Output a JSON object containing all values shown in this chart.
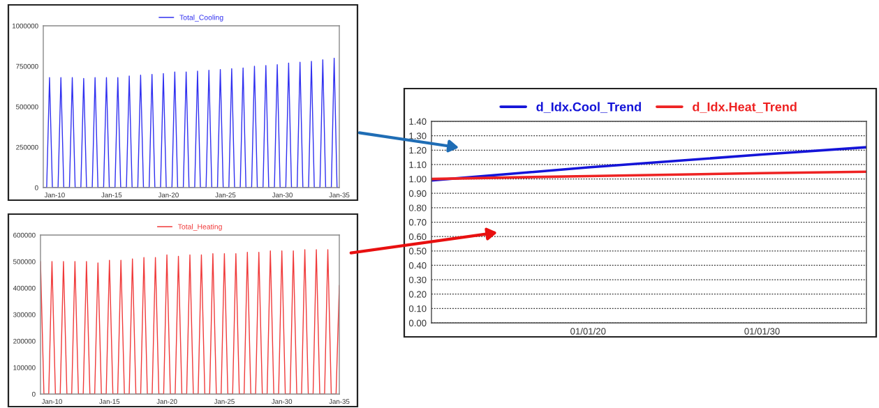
{
  "chart_data": [
    {
      "type": "line",
      "legend": "top",
      "xlim": [
        "2009-01-01",
        "2035-01-01"
      ],
      "ylim": [
        0,
        1000000
      ],
      "xticks": [
        {
          "value": "2010-01-01",
          "label": "Jan-10"
        },
        {
          "value": "2015-01-01",
          "label": "Jan-15"
        },
        {
          "value": "2020-01-01",
          "label": "Jan-20"
        },
        {
          "value": "2025-01-01",
          "label": "Jan-25"
        },
        {
          "value": "2030-01-01",
          "label": "Jan-30"
        },
        {
          "value": "2035-01-01",
          "label": "Jan-35"
        }
      ],
      "yticks": [
        0,
        250000,
        500000,
        750000,
        1000000
      ],
      "series": [
        {
          "name": "Total_Cooling",
          "color": "#3030f0",
          "x": [
            "2009-01-01",
            "2009-04-20",
            "2009-07-20",
            "2009-10-20",
            "2010-04-20",
            "2010-07-20",
            "2010-10-20",
            "2011-04-20",
            "2011-07-20",
            "2011-10-20",
            "2012-04-20",
            "2012-07-20",
            "2012-10-20",
            "2013-04-20",
            "2013-07-20",
            "2013-10-20",
            "2014-04-20",
            "2014-07-20",
            "2014-10-20",
            "2015-04-20",
            "2015-07-20",
            "2015-10-20",
            "2016-04-20",
            "2016-07-20",
            "2016-10-20",
            "2017-04-20",
            "2017-07-20",
            "2017-10-20",
            "2018-04-20",
            "2018-07-20",
            "2018-10-20",
            "2019-04-20",
            "2019-07-20",
            "2019-10-20",
            "2020-04-20",
            "2020-07-20",
            "2020-10-20",
            "2021-04-20",
            "2021-07-20",
            "2021-10-20",
            "2022-04-20",
            "2022-07-20",
            "2022-10-20",
            "2023-04-20",
            "2023-07-20",
            "2023-10-20",
            "2024-04-20",
            "2024-07-20",
            "2024-10-20",
            "2025-04-20",
            "2025-07-20",
            "2025-10-20",
            "2026-04-20",
            "2026-07-20",
            "2026-10-20",
            "2027-04-20",
            "2027-07-20",
            "2027-10-20",
            "2028-04-20",
            "2028-07-20",
            "2028-10-20",
            "2029-04-20",
            "2029-07-20",
            "2029-10-20",
            "2030-04-20",
            "2030-07-20",
            "2030-10-20",
            "2031-04-20",
            "2031-07-20",
            "2031-10-20",
            "2032-04-20",
            "2032-07-20",
            "2032-10-20",
            "2033-04-20",
            "2033-07-20",
            "2033-10-20",
            "2034-04-20",
            "2034-07-20",
            "2034-10-20",
            "2035-01-01"
          ],
          "values": [
            0,
            0,
            680000,
            0,
            0,
            680000,
            0,
            0,
            680000,
            0,
            0,
            675000,
            0,
            0,
            680000,
            0,
            0,
            680000,
            0,
            0,
            680000,
            0,
            0,
            690000,
            0,
            0,
            695000,
            0,
            0,
            700000,
            0,
            0,
            705000,
            0,
            0,
            715000,
            0,
            0,
            715000,
            0,
            0,
            720000,
            0,
            0,
            725000,
            0,
            0,
            730000,
            0,
            0,
            735000,
            0,
            0,
            740000,
            0,
            0,
            750000,
            0,
            0,
            755000,
            0,
            0,
            760000,
            0,
            0,
            770000,
            0,
            0,
            775000,
            0,
            0,
            780000,
            0,
            0,
            790000,
            0,
            0,
            800000,
            0,
            0
          ]
        }
      ]
    },
    {
      "type": "line",
      "legend": "top",
      "xlim": [
        "2009-01-01",
        "2035-01-01"
      ],
      "ylim": [
        0,
        600000
      ],
      "xticks": [
        {
          "value": "2010-01-01",
          "label": "Jan-10"
        },
        {
          "value": "2015-01-01",
          "label": "Jan-15"
        },
        {
          "value": "2020-01-01",
          "label": "Jan-20"
        },
        {
          "value": "2025-01-01",
          "label": "Jan-25"
        },
        {
          "value": "2030-01-01",
          "label": "Jan-30"
        },
        {
          "value": "2035-01-01",
          "label": "Jan-35"
        }
      ],
      "yticks": [
        0,
        100000,
        200000,
        300000,
        400000,
        500000,
        600000
      ],
      "series": [
        {
          "name": "Total_Heating",
          "color": "#f03a3a",
          "x": [
            "2009-01-01",
            "2009-04-20",
            "2009-09-20",
            "2010-01-01",
            "2010-04-20",
            "2010-09-20",
            "2011-01-01",
            "2011-04-20",
            "2011-09-20",
            "2012-01-01",
            "2012-04-20",
            "2012-09-20",
            "2013-01-01",
            "2013-04-20",
            "2013-09-20",
            "2014-01-01",
            "2014-04-20",
            "2014-09-20",
            "2015-01-01",
            "2015-04-20",
            "2015-09-20",
            "2016-01-01",
            "2016-04-20",
            "2016-09-20",
            "2017-01-01",
            "2017-04-20",
            "2017-09-20",
            "2018-01-01",
            "2018-04-20",
            "2018-09-20",
            "2019-01-01",
            "2019-04-20",
            "2019-09-20",
            "2020-01-01",
            "2020-04-20",
            "2020-09-20",
            "2021-01-01",
            "2021-04-20",
            "2021-09-20",
            "2022-01-01",
            "2022-04-20",
            "2022-09-20",
            "2023-01-01",
            "2023-04-20",
            "2023-09-20",
            "2024-01-01",
            "2024-04-20",
            "2024-09-20",
            "2025-01-01",
            "2025-04-20",
            "2025-09-20",
            "2026-01-01",
            "2026-04-20",
            "2026-09-20",
            "2027-01-01",
            "2027-04-20",
            "2027-09-20",
            "2028-01-01",
            "2028-04-20",
            "2028-09-20",
            "2029-01-01",
            "2029-04-20",
            "2029-09-20",
            "2030-01-01",
            "2030-04-20",
            "2030-09-20",
            "2031-01-01",
            "2031-04-20",
            "2031-09-20",
            "2032-01-01",
            "2032-04-20",
            "2032-09-20",
            "2033-01-01",
            "2033-04-20",
            "2033-09-20",
            "2034-01-01",
            "2034-04-20",
            "2034-09-20",
            "2035-01-01"
          ],
          "values": [
            500000,
            0,
            0,
            500000,
            0,
            0,
            500000,
            0,
            0,
            500000,
            0,
            0,
            500000,
            0,
            0,
            495000,
            0,
            0,
            505000,
            0,
            0,
            505000,
            0,
            0,
            510000,
            0,
            0,
            515000,
            0,
            0,
            515000,
            0,
            0,
            525000,
            0,
            0,
            520000,
            0,
            0,
            525000,
            0,
            0,
            525000,
            0,
            0,
            530000,
            0,
            0,
            530000,
            0,
            0,
            530000,
            0,
            0,
            535000,
            0,
            0,
            535000,
            0,
            0,
            540000,
            0,
            0,
            540000,
            0,
            0,
            540000,
            0,
            0,
            545000,
            0,
            0,
            545000,
            0,
            0,
            545000,
            0,
            0,
            410000
          ]
        }
      ]
    },
    {
      "type": "line",
      "legend": "top",
      "grid": "y",
      "xlim": [
        "2011-01-01",
        "2036-01-01"
      ],
      "ylim": [
        0,
        1.4
      ],
      "xticks": [
        {
          "value": "2020-01-01",
          "label": "01/01/20"
        },
        {
          "value": "2030-01-01",
          "label": "01/01/30"
        }
      ],
      "yticks": [
        {
          "value": 0,
          "label": "0.00"
        },
        {
          "value": 0.1,
          "label": "0.10"
        },
        {
          "value": 0.2,
          "label": "0.20"
        },
        {
          "value": 0.3,
          "label": "0.30"
        },
        {
          "value": 0.4,
          "label": "0.40"
        },
        {
          "value": 0.5,
          "label": "0.50"
        },
        {
          "value": 0.6,
          "label": "0.60"
        },
        {
          "value": 0.7,
          "label": "0.70"
        },
        {
          "value": 0.8,
          "label": "0.80"
        },
        {
          "value": 0.9,
          "label": "0.90"
        },
        {
          "value": 1.0,
          "label": "1.00"
        },
        {
          "value": 1.1,
          "label": "1.10"
        },
        {
          "value": 1.2,
          "label": "1.20"
        },
        {
          "value": 1.3,
          "label": "1.30"
        },
        {
          "value": 1.4,
          "label": "1.40"
        }
      ],
      "series": [
        {
          "name": "d_Idx.Cool_Trend",
          "color": "#1414d8",
          "x": [
            "2011-01-01",
            "2020-01-01",
            "2030-01-01",
            "2036-01-01"
          ],
          "values": [
            0.99,
            1.08,
            1.17,
            1.22
          ]
        },
        {
          "name": "d_Idx.Heat_Trend",
          "color": "#ee2222",
          "x": [
            "2011-01-01",
            "2020-01-01",
            "2030-01-01",
            "2036-01-01"
          ],
          "values": [
            1.0,
            1.02,
            1.04,
            1.05
          ]
        }
      ]
    }
  ]
}
